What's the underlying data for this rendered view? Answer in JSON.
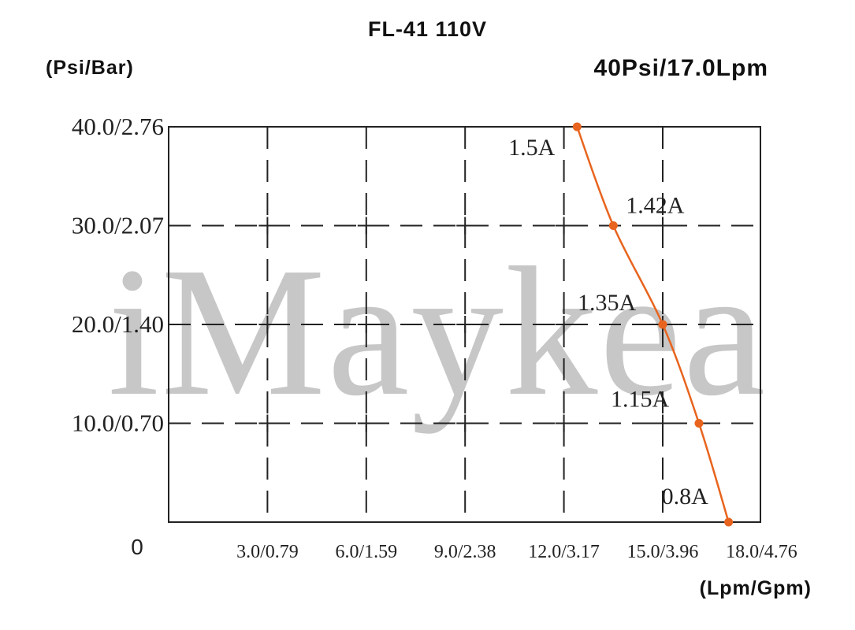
{
  "chart_data": {
    "type": "line",
    "title": "FL-41 110V",
    "subtitle": "40Psi/17.0Lpm",
    "xlabel": "(Lpm/Gpm)",
    "ylabel": "(Psi/Bar)",
    "origin_label": "0",
    "xlim": [
      0,
      18
    ],
    "ylim": [
      0,
      40
    ],
    "x_ticks": [
      {
        "value": 3,
        "label": "3.0/0.79"
      },
      {
        "value": 6,
        "label": "6.0/1.59"
      },
      {
        "value": 9,
        "label": "9.0/2.38"
      },
      {
        "value": 12,
        "label": "12.0/3.17"
      },
      {
        "value": 15,
        "label": "15.0/3.96"
      },
      {
        "value": 18,
        "label": "18.0/4.76"
      }
    ],
    "y_ticks": [
      {
        "value": 10,
        "label": "10.0/0.70"
      },
      {
        "value": 20,
        "label": "20.0/1.40"
      },
      {
        "value": 30,
        "label": "30.0/2.07"
      },
      {
        "value": 40,
        "label": "40.0/2.76"
      }
    ],
    "grid": true,
    "series": [
      {
        "color": "#e8641e",
        "points": [
          {
            "x": 12.4,
            "y": 40,
            "label": "1.5A"
          },
          {
            "x": 13.5,
            "y": 30,
            "label": "1.42A"
          },
          {
            "x": 15.0,
            "y": 20,
            "label": "1.35A"
          },
          {
            "x": 16.1,
            "y": 10,
            "label": "1.15A"
          },
          {
            "x": 17.0,
            "y": 0,
            "label": "0.8A"
          }
        ]
      }
    ]
  },
  "watermark": "iMaykea"
}
